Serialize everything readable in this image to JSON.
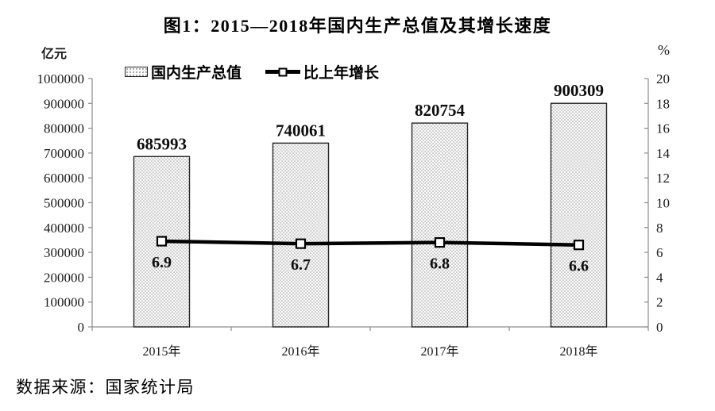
{
  "chart_data": {
    "type": "bar+line",
    "title": "图1：2015—2018年国内生产总值及其增长速度",
    "categories": [
      "2015年",
      "2016年",
      "2017年",
      "2018年"
    ],
    "series": [
      {
        "name": "国内生产总值",
        "type": "bar",
        "axis": "left",
        "values": [
          685993,
          740061,
          820754,
          900309
        ]
      },
      {
        "name": "比上年增长",
        "type": "line",
        "axis": "right",
        "values": [
          6.9,
          6.7,
          6.8,
          6.6
        ]
      }
    ],
    "left_axis": {
      "unit": "亿元",
      "min": 0,
      "max": 1000000,
      "step": 100000
    },
    "right_axis": {
      "unit": "%",
      "min": 0,
      "max": 20,
      "step": 2
    },
    "legend_position": "top",
    "grid": false,
    "colors": {
      "bar_fill_dot": "#8f8f8f",
      "bar_border": "#262626",
      "line": "#000000",
      "axis": "#8c8c8c",
      "text": "#000000"
    }
  },
  "source_note": "数据来源：国家统计局"
}
